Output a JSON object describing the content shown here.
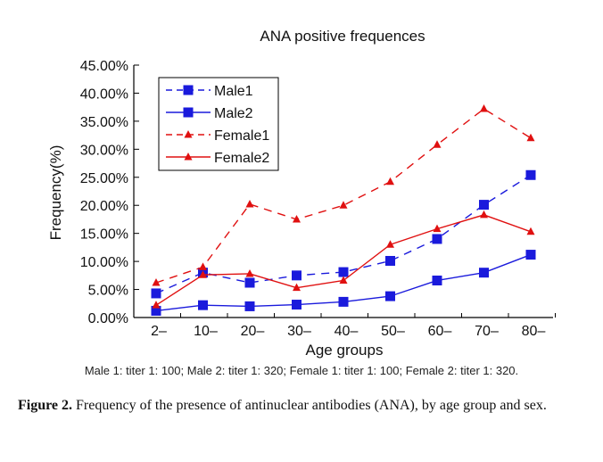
{
  "chart_data": {
    "type": "line",
    "title": "ANA positive frequences",
    "xlabel": "Age groups",
    "ylabel": "Frequency(%)",
    "categories": [
      "2–",
      "10–",
      "20–",
      "30–",
      "40–",
      "50–",
      "60–",
      "70–",
      "80–"
    ],
    "yticks": [
      "0.00%",
      "5.00%",
      "10.00%",
      "15.00%",
      "20.00%",
      "25.00%",
      "30.00%",
      "35.00%",
      "40.00%",
      "45.00%"
    ],
    "ylim": [
      0,
      45
    ],
    "legend_position": "top-left",
    "series": [
      {
        "name": "Male1",
        "color": "#1a1adc",
        "dash": "dashed",
        "marker": "square",
        "values": [
          4.3,
          8.0,
          6.2,
          7.5,
          8.1,
          10.1,
          14.0,
          20.1,
          25.4
        ]
      },
      {
        "name": "Male2",
        "color": "#1a1adc",
        "dash": "solid",
        "marker": "square",
        "values": [
          1.2,
          2.2,
          2.0,
          2.3,
          2.8,
          3.8,
          6.6,
          8.0,
          11.2
        ]
      },
      {
        "name": "Female1",
        "color": "#e01010",
        "dash": "dashed",
        "marker": "triangle",
        "values": [
          6.2,
          9.0,
          20.2,
          17.5,
          20.0,
          24.2,
          30.8,
          37.2,
          32.0
        ]
      },
      {
        "name": "Female2",
        "color": "#e01010",
        "dash": "solid",
        "marker": "triangle",
        "values": [
          2.2,
          7.6,
          7.8,
          5.3,
          6.6,
          13.0,
          15.8,
          18.3,
          15.3
        ]
      }
    ]
  },
  "note": "Male 1: titer 1: 100; Male 2: titer 1: 320; Female 1: titer 1: 100; Female 2: titer 1: 320.",
  "caption": {
    "label": "Figure 2.",
    "text": "Frequency of the presence of antinuclear antibodies (ANA), by age group and sex."
  }
}
